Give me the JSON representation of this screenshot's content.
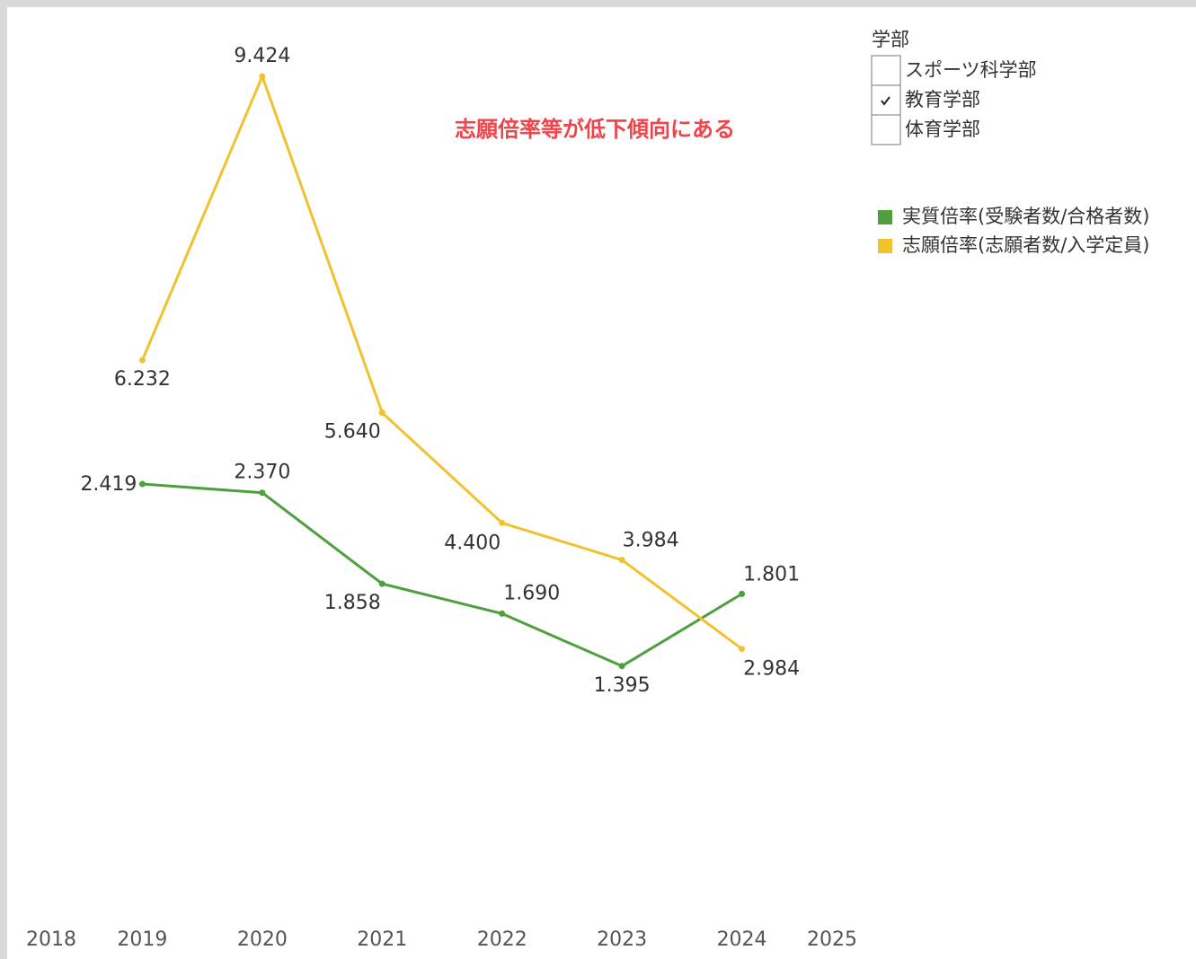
{
  "chart_data": {
    "type": "line",
    "annotation": "志願倍率等が低下傾向にある",
    "x": [
      2019,
      2020,
      2021,
      2022,
      2023,
      2024
    ],
    "xlim": [
      2018,
      2025
    ],
    "xticks": [
      2018,
      2019,
      2020,
      2021,
      2022,
      2023,
      2024,
      2025
    ],
    "ylim": [
      0,
      10
    ],
    "y2lim": [
      0,
      5
    ],
    "series": [
      {
        "name": "実質倍率(受験者数/合格者数)",
        "color": "#4e9f3d",
        "axis": "y2",
        "values": [
          2.419,
          2.37,
          1.858,
          1.69,
          1.395,
          1.801
        ],
        "value_labels": [
          "2.419",
          "2.370",
          "1.858",
          "1.690",
          "1.395",
          "1.801"
        ]
      },
      {
        "name": "志願倍率(志願者数/入学定員)",
        "color": "#f2c12e",
        "values": [
          6.232,
          9.424,
          5.64,
          4.4,
          3.984,
          2.984
        ],
        "value_labels": [
          "6.232",
          "9.424",
          "5.640",
          "4.400",
          "3.984",
          "2.984"
        ]
      }
    ],
    "filter": {
      "title": "学部",
      "options": [
        {
          "label": "スポーツ科学部",
          "checked": false
        },
        {
          "label": "教育学部",
          "checked": true
        },
        {
          "label": "体育学部",
          "checked": false
        }
      ]
    }
  }
}
